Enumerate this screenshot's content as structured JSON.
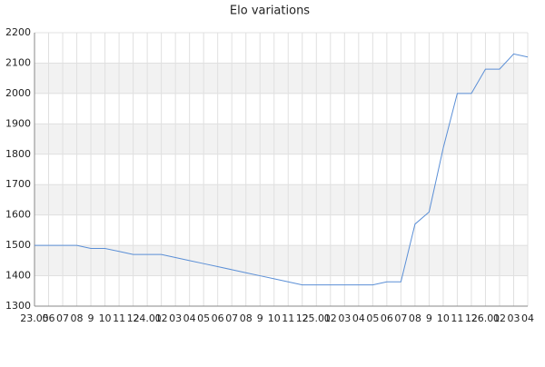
{
  "chart_data": {
    "type": "line",
    "title": "Elo variations",
    "categories": [
      "23.05",
      "06",
      "07",
      "08",
      "9",
      "10",
      "11",
      "12",
      "24.01",
      "02",
      "03",
      "04",
      "05",
      "06",
      "07",
      "08",
      "9",
      "10",
      "11",
      "12",
      "25.01",
      "02",
      "03",
      "04",
      "05",
      "06",
      "07",
      "08",
      "9",
      "10",
      "11",
      "12",
      "26.01",
      "02",
      "03",
      "04"
    ],
    "series": [
      {
        "color": "#5b8fd6",
        "values": [
          1500,
          1500,
          1500,
          1500,
          1490,
          1490,
          1480,
          1470,
          1470,
          1470,
          1460,
          1450,
          1440,
          1430,
          1420,
          1410,
          1400,
          1390,
          1380,
          1370,
          1370,
          1370,
          1370,
          1370,
          1370,
          1380,
          1380,
          1570,
          1610,
          1820,
          2000,
          2000,
          2080,
          2080,
          2130,
          2120
        ]
      }
    ],
    "ylim": [
      1300,
      2200
    ],
    "yticks": [
      1300,
      1400,
      1500,
      1600,
      1700,
      1800,
      1900,
      2000,
      2100,
      2200
    ],
    "grid": true
  }
}
